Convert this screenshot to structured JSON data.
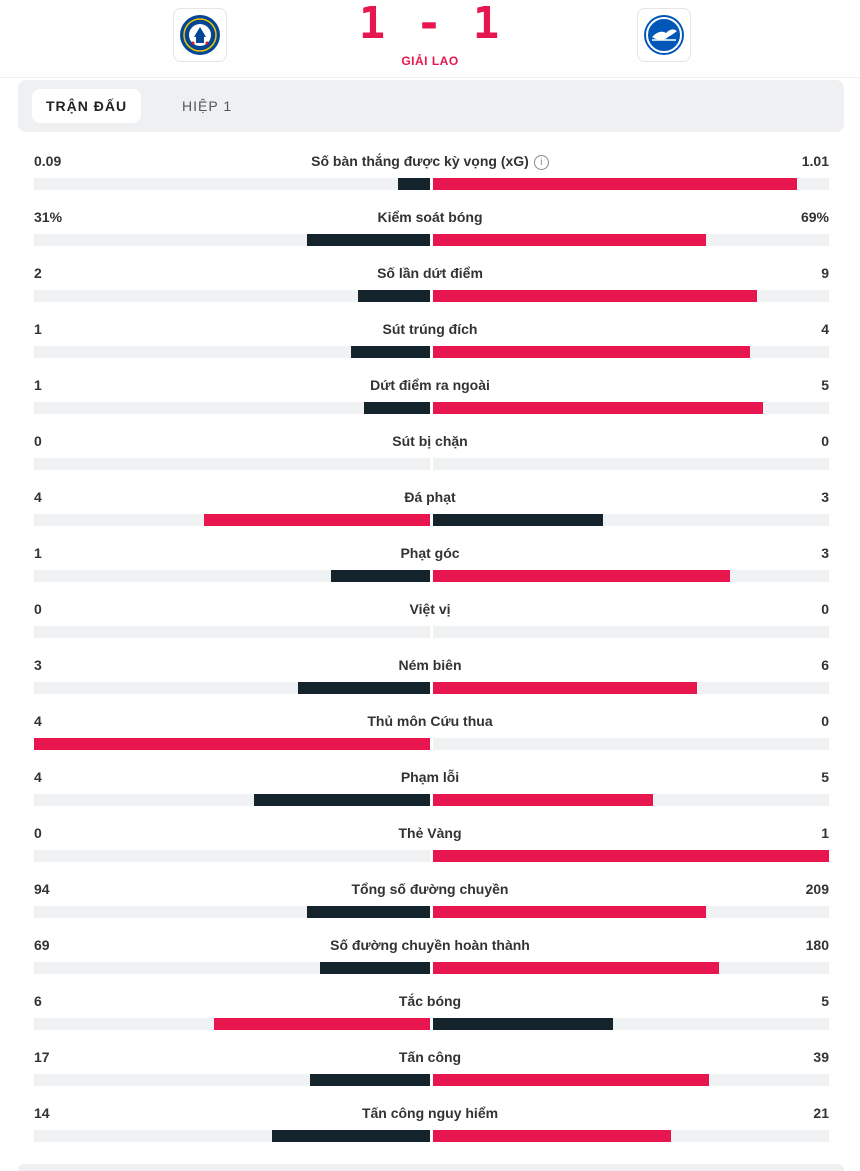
{
  "colors": {
    "accent": "#e8164e",
    "dark": "#15232d",
    "track": "#eff1f3"
  },
  "match": {
    "home_team_icon": "chelsea-crest-icon",
    "away_team_icon": "brighton-crest-icon",
    "score": "1 - 1",
    "status": "GIẢI LAO"
  },
  "tabs": [
    {
      "label": "TRẬN ĐẤU",
      "active": true
    },
    {
      "label": "HIỆP 1",
      "active": false
    }
  ],
  "stats": [
    {
      "label": "Số bàn thắng được kỳ vọng (xG)",
      "home": "0.09",
      "away": "1.01",
      "home_value": 0.09,
      "away_value": 1.01,
      "info": true
    },
    {
      "label": "Kiểm soát bóng",
      "home": "31%",
      "away": "69%",
      "home_value": 31,
      "away_value": 69
    },
    {
      "label": "Số lần dứt điểm",
      "home": "2",
      "away": "9",
      "home_value": 2,
      "away_value": 9
    },
    {
      "label": "Sút trúng đích",
      "home": "1",
      "away": "4",
      "home_value": 1,
      "away_value": 4
    },
    {
      "label": "Dứt điểm ra ngoài",
      "home": "1",
      "away": "5",
      "home_value": 1,
      "away_value": 5
    },
    {
      "label": "Sút bị chặn",
      "home": "0",
      "away": "0",
      "home_value": 0,
      "away_value": 0
    },
    {
      "label": "Đá phạt",
      "home": "4",
      "away": "3",
      "home_value": 4,
      "away_value": 3
    },
    {
      "label": "Phạt góc",
      "home": "1",
      "away": "3",
      "home_value": 1,
      "away_value": 3
    },
    {
      "label": "Việt vị",
      "home": "0",
      "away": "0",
      "home_value": 0,
      "away_value": 0
    },
    {
      "label": "Ném biên",
      "home": "3",
      "away": "6",
      "home_value": 3,
      "away_value": 6
    },
    {
      "label": "Thủ môn Cứu thua",
      "home": "4",
      "away": "0",
      "home_value": 4,
      "away_value": 0
    },
    {
      "label": "Phạm lỗi",
      "home": "4",
      "away": "5",
      "home_value": 4,
      "away_value": 5
    },
    {
      "label": "Thẻ Vàng",
      "home": "0",
      "away": "1",
      "home_value": 0,
      "away_value": 1
    },
    {
      "label": "Tổng số đường chuyền",
      "home": "94",
      "away": "209",
      "home_value": 94,
      "away_value": 209
    },
    {
      "label": "Số đường chuyền hoàn thành",
      "home": "69",
      "away": "180",
      "home_value": 69,
      "away_value": 180
    },
    {
      "label": "Tắc bóng",
      "home": "6",
      "away": "5",
      "home_value": 6,
      "away_value": 5
    },
    {
      "label": "Tấn công",
      "home": "17",
      "away": "39",
      "home_value": 17,
      "away_value": 39
    },
    {
      "label": "Tấn công nguy hiểm",
      "home": "14",
      "away": "21",
      "home_value": 14,
      "away_value": 21
    }
  ]
}
